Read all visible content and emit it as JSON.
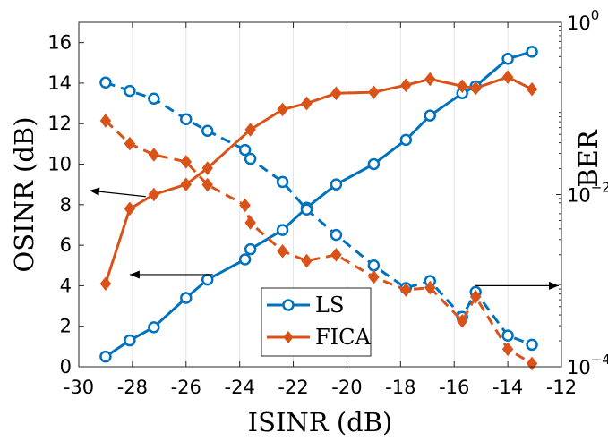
{
  "chart_data": {
    "type": "line",
    "xlabel": "ISINR (dB)",
    "ylabel_left": "OSINR (dB)",
    "ylabel_right": "BER",
    "xlim": [
      -30,
      -12
    ],
    "ylim_left": [
      0,
      17
    ],
    "ylim_right": [
      0.0001,
      1
    ],
    "right_scale": "log",
    "x_ticks": [
      "-30",
      "-28",
      "-26",
      "-24",
      "-22",
      "-20",
      "-18",
      "-16",
      "-14",
      "-12"
    ],
    "y_left_ticks": [
      "0",
      "2",
      "4",
      "6",
      "8",
      "10",
      "12",
      "14",
      "16"
    ],
    "y_right_ticks": [
      {
        "value": 1,
        "base": "10",
        "exp": "0"
      },
      {
        "value": 0.01,
        "base": "10",
        "exp": "−2"
      },
      {
        "value": 0.0001,
        "base": "10",
        "exp": "−4"
      }
    ],
    "grid": "vertical",
    "legend_position": "bottom-center",
    "series": [
      {
        "name": "LS",
        "color": "#0072BD",
        "marker": "circle",
        "metric": "OSINR",
        "axis": "left",
        "line": "solid",
        "x": [
          -29,
          -28.1,
          -27.2,
          -26,
          -25.2,
          -23.8,
          -23.6,
          -22.4,
          -21.5,
          -20.4,
          -19,
          -17.8,
          -16.9,
          -15.7,
          -15.2,
          -14,
          -13.1
        ],
        "y": [
          0.5,
          1.3,
          1.95,
          3.4,
          4.3,
          5.3,
          5.8,
          6.75,
          7.85,
          9,
          10,
          11.2,
          12.4,
          13.5,
          13.85,
          15.2,
          15.55
        ]
      },
      {
        "name": "FICA",
        "color": "#D95319",
        "marker": "diamond",
        "metric": "OSINR",
        "axis": "left",
        "line": "solid",
        "x": [
          -29,
          -28.1,
          -27.2,
          -26,
          -25.2,
          -23.6,
          -22.4,
          -21.5,
          -20.4,
          -19,
          -17.8,
          -16.9,
          -15.7,
          -15.2,
          -14,
          -13.1
        ],
        "y": [
          4.1,
          7.8,
          8.5,
          9,
          9.8,
          11.7,
          12.7,
          13,
          13.5,
          13.55,
          13.9,
          14.2,
          13.85,
          13.75,
          14.3,
          13.7
        ]
      },
      {
        "name": "LS",
        "color": "#0072BD",
        "marker": "circle",
        "metric": "BER",
        "axis": "right",
        "line": "dashed",
        "x": [
          -29,
          -28.1,
          -27.2,
          -26,
          -25.2,
          -23.8,
          -23.6,
          -22.4,
          -21.5,
          -20.4,
          -19,
          -17.8,
          -16.9,
          -15.7,
          -15.2,
          -14,
          -13.1
        ],
        "y": [
          0.2,
          0.16,
          0.13,
          0.075,
          0.055,
          0.033,
          0.026,
          0.014,
          0.0067,
          0.0034,
          0.0015,
          0.00082,
          0.00099,
          0.00038,
          0.00074,
          0.00023,
          0.00018
        ]
      },
      {
        "name": "FICA",
        "color": "#D95319",
        "marker": "diamond",
        "metric": "BER",
        "axis": "right",
        "line": "dashed",
        "x": [
          -29,
          -28.1,
          -27.2,
          -26,
          -25.2,
          -23.8,
          -23.6,
          -22.4,
          -21.5,
          -20.4,
          -19,
          -17.8,
          -16.9,
          -15.7,
          -15.2,
          -14,
          -13.1
        ],
        "y": [
          0.072,
          0.039,
          0.029,
          0.024,
          0.013,
          0.0075,
          0.0047,
          0.0022,
          0.0017,
          0.002,
          0.0011,
          0.00078,
          0.00083,
          0.00034,
          0.00065,
          0.00016,
          0.000109
        ]
      }
    ],
    "annotations": [
      {
        "type": "arrow",
        "points_to": "left-axis",
        "from": {
          "x": -27.5,
          "y_left": 8.4
        },
        "to": {
          "x": -29.6,
          "y_left": 8.7
        }
      },
      {
        "type": "arrow",
        "points_to": "left-axis",
        "from": {
          "x": -25,
          "y_left": 4.55
        },
        "to": {
          "x": -28.1,
          "y_left": 4.55
        }
      },
      {
        "type": "arrow",
        "points_to": "right-axis",
        "from": {
          "x": -15.2,
          "y_left": 4.0
        },
        "to": {
          "x": -12.1,
          "y_left": 4.0
        }
      }
    ]
  }
}
